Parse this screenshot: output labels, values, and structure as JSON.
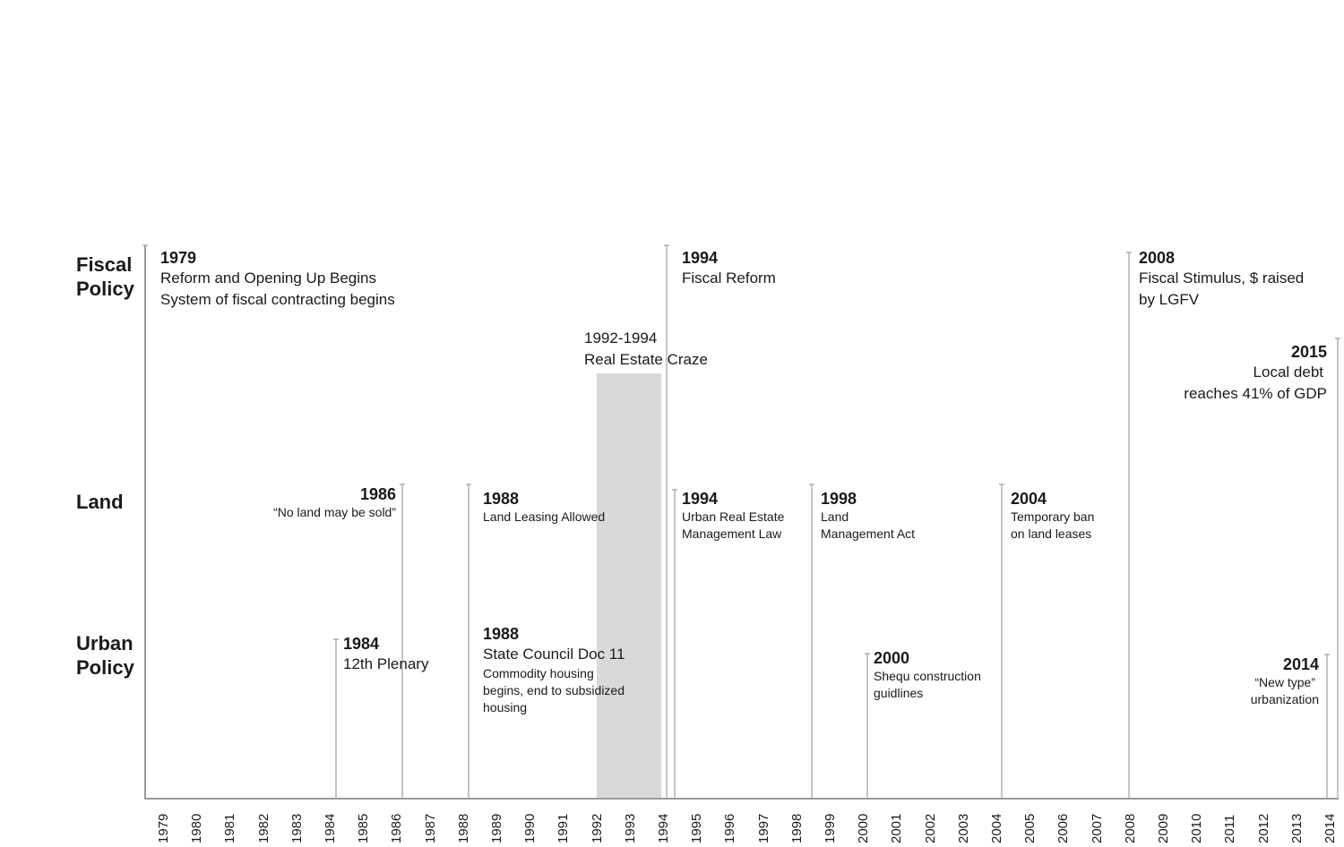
{
  "categories": {
    "fiscal": "Fiscal\nPolicy",
    "land": "Land",
    "urban": "Urban\nPolicy"
  },
  "years": [
    "1979",
    "1980",
    "1981",
    "1982",
    "1983",
    "1984",
    "1985",
    "1986",
    "1987",
    "1988",
    "1989",
    "1990",
    "1991",
    "1992",
    "1993",
    "1994",
    "1995",
    "1996",
    "1997",
    "1998",
    "1999",
    "2000",
    "2001",
    "2002",
    "2003",
    "2004",
    "2005",
    "2006",
    "2007",
    "2008",
    "2009",
    "2010",
    "2011",
    "2012",
    "2013",
    "2014"
  ],
  "band": {
    "label_years": "1992-1994",
    "label_text": "Real Estate Craze",
    "color": "#d9d9d9"
  },
  "events": {
    "fiscal_1979": {
      "year": "1979",
      "lines": [
        "Reform and Opening Up Begins",
        "System of fiscal contracting begins"
      ]
    },
    "fiscal_1994": {
      "year": "1994",
      "lines": [
        "Fiscal Reform"
      ]
    },
    "fiscal_2008": {
      "year": "2008",
      "lines": [
        "Fiscal Stimulus, $ raised",
        "by LGFV"
      ]
    },
    "fiscal_2015": {
      "year": "2015",
      "lines": [
        "Local debt",
        "reaches 41% of GDP"
      ]
    },
    "land_1986": {
      "year": "1986",
      "lines": [
        "“No land may be sold”"
      ]
    },
    "land_1988": {
      "year": "1988",
      "lines": [
        "Land Leasing Allowed"
      ]
    },
    "land_1994": {
      "year": "1994",
      "lines": [
        "Urban Real Estate",
        "Management Law"
      ]
    },
    "land_1998": {
      "year": "1998",
      "lines": [
        "Land",
        "Management Act"
      ]
    },
    "land_2004": {
      "year": "2004",
      "lines": [
        "Temporary ban",
        "on land leases"
      ]
    },
    "urban_1984": {
      "year": "1984",
      "lines": [
        "12th Plenary"
      ]
    },
    "urban_1988": {
      "year": "1988",
      "title": "State Council Doc 11",
      "lines": [
        "Commodity housing",
        "begins, end to subsidized",
        "housing"
      ]
    },
    "urban_2000": {
      "year": "2000",
      "lines": [
        "Shequ construction",
        "guidlines"
      ]
    },
    "urban_2014": {
      "year": "2014",
      "lines": [
        "“New type”",
        "urbanization"
      ]
    }
  },
  "colors": {
    "axis": "#9a9a9a",
    "marker": "#8c8c8c",
    "text": "#1a1a1a"
  }
}
